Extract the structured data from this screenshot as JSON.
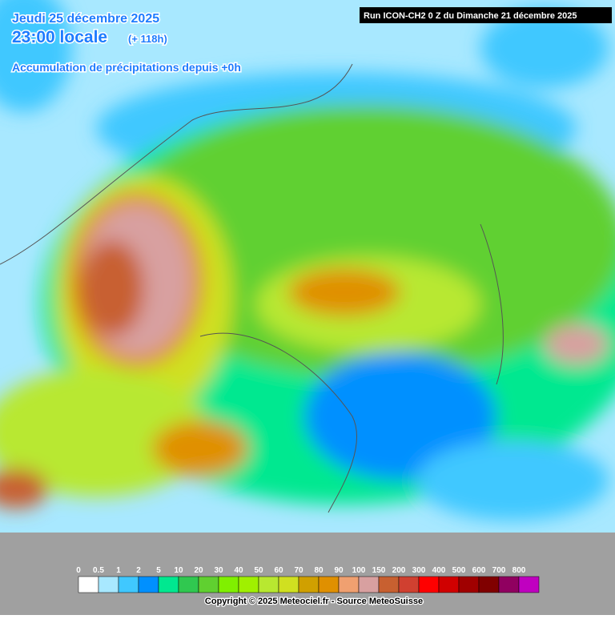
{
  "header": {
    "date": "Jeudi 25 décembre 2025",
    "time": "23:00 locale",
    "lead": "(+ 118h)",
    "subtitle": "Accumulation de précipitations depuis +0h"
  },
  "run": "Run ICON-CH2 0 Z du Dimanche 21 décembre 2025",
  "legend": {
    "items": [
      {
        "label": "0",
        "color": "#ffffff"
      },
      {
        "label": "0.5",
        "color": "#a8e8ff"
      },
      {
        "label": "1",
        "color": "#40c8ff"
      },
      {
        "label": "2",
        "color": "#0090ff"
      },
      {
        "label": "5",
        "color": "#00e890"
      },
      {
        "label": "10",
        "color": "#30c850"
      },
      {
        "label": "20",
        "color": "#60d030"
      },
      {
        "label": "30",
        "color": "#80f000"
      },
      {
        "label": "40",
        "color": "#a0f000"
      },
      {
        "label": "50",
        "color": "#b8e830"
      },
      {
        "label": "60",
        "color": "#d0e020"
      },
      {
        "label": "70",
        "color": "#d0a000"
      },
      {
        "label": "80",
        "color": "#e09000"
      },
      {
        "label": "90",
        "color": "#f0a070"
      },
      {
        "label": "100",
        "color": "#d8a0a0"
      },
      {
        "label": "150",
        "color": "#c86030"
      },
      {
        "label": "200",
        "color": "#d04030"
      },
      {
        "label": "300",
        "color": "#ff0000"
      },
      {
        "label": "400",
        "color": "#d00000"
      },
      {
        "label": "500",
        "color": "#a00000"
      },
      {
        "label": "600",
        "color": "#800000"
      },
      {
        "label": "700",
        "color": "#900060"
      },
      {
        "label": "800",
        "color": "#c000c0"
      }
    ]
  },
  "footer": {
    "copyright": "Copyright © 2025 Meteociel.fr - Source MeteoSuisse"
  }
}
